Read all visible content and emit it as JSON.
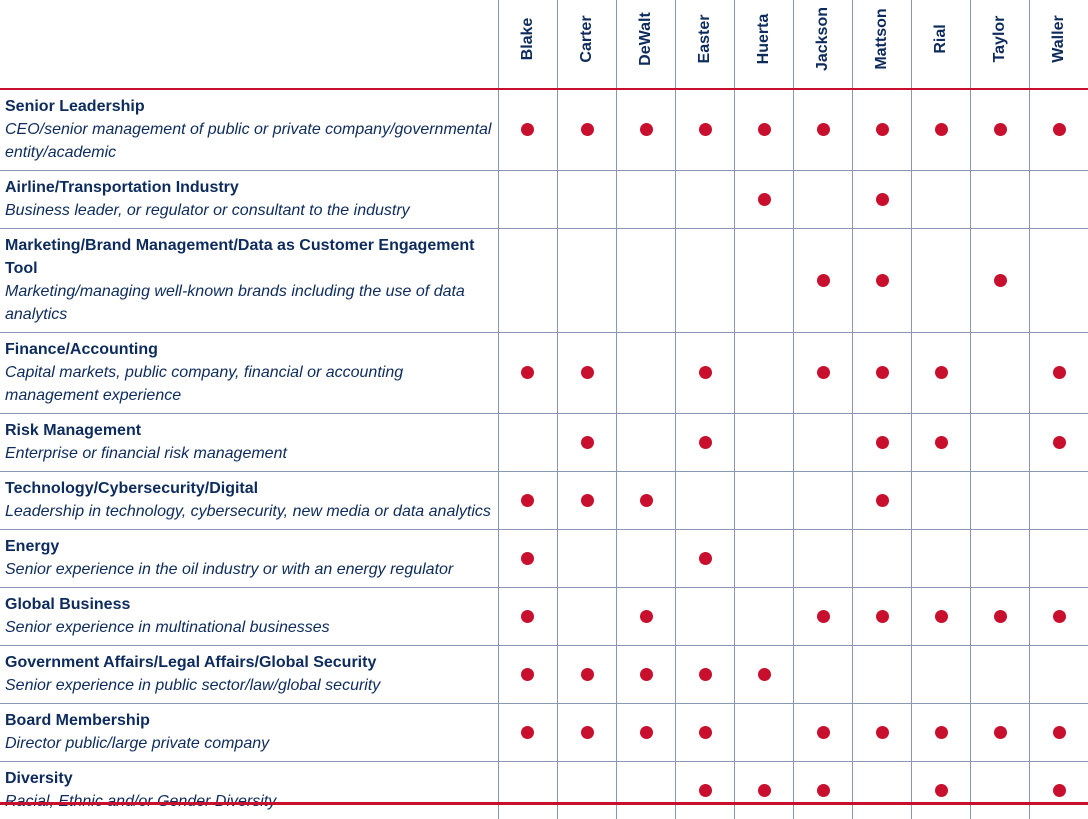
{
  "directors": [
    "Blake",
    "Carter",
    "DeWalt",
    "Easter",
    "Huerta",
    "Jackson",
    "Mattson",
    "Rial",
    "Taylor",
    "Waller"
  ],
  "colors": {
    "accent": "#c8102e",
    "text": "#0d2b5c",
    "grid": "#8a97b0"
  },
  "skills": [
    {
      "title": "Senior Leadership",
      "desc": "CEO/senior management of public or private company/governmental entity/academic",
      "marks": [
        true,
        true,
        true,
        true,
        true,
        true,
        true,
        true,
        true,
        true
      ]
    },
    {
      "title": "Airline/Transportation Industry",
      "desc": "Business leader, or regulator or consultant to the industry",
      "marks": [
        false,
        false,
        false,
        false,
        true,
        false,
        true,
        false,
        false,
        false
      ]
    },
    {
      "title": "Marketing/Brand Management/Data as Customer Engagement Tool",
      "desc": "Marketing/managing well-known brands including the use of data analytics",
      "marks": [
        false,
        false,
        false,
        false,
        false,
        true,
        true,
        false,
        true,
        false
      ]
    },
    {
      "title": "Finance/Accounting",
      "desc": "Capital markets, public company, financial or accounting management experience",
      "marks": [
        true,
        true,
        false,
        true,
        false,
        true,
        true,
        true,
        false,
        true
      ]
    },
    {
      "title": "Risk Management",
      "desc": "Enterprise or financial risk management",
      "marks": [
        false,
        true,
        false,
        true,
        false,
        false,
        true,
        true,
        false,
        true
      ]
    },
    {
      "title": "Technology/Cybersecurity/Digital",
      "desc": "Leadership in technology, cybersecurity, new media or data analytics",
      "marks": [
        true,
        true,
        true,
        false,
        false,
        false,
        true,
        false,
        false,
        false
      ]
    },
    {
      "title": "Energy",
      "desc": "Senior experience in the oil industry or with an energy regulator",
      "marks": [
        true,
        false,
        false,
        true,
        false,
        false,
        false,
        false,
        false,
        false
      ]
    },
    {
      "title": "Global Business",
      "desc": "Senior experience in multinational businesses",
      "marks": [
        true,
        false,
        true,
        false,
        false,
        true,
        true,
        true,
        true,
        true
      ]
    },
    {
      "title": "Government Affairs/Legal Affairs/Global Security",
      "desc": "Senior experience in public sector/law/global security",
      "marks": [
        true,
        true,
        true,
        true,
        true,
        false,
        false,
        false,
        false,
        false
      ]
    },
    {
      "title": "Board Membership",
      "desc": "Director public/large private company",
      "marks": [
        true,
        true,
        true,
        true,
        false,
        true,
        true,
        true,
        true,
        true
      ]
    },
    {
      "title": "Diversity",
      "desc": "Racial, Ethnic and/or Gender Diversity",
      "marks": [
        false,
        false,
        false,
        true,
        true,
        true,
        false,
        true,
        false,
        true
      ]
    }
  ]
}
